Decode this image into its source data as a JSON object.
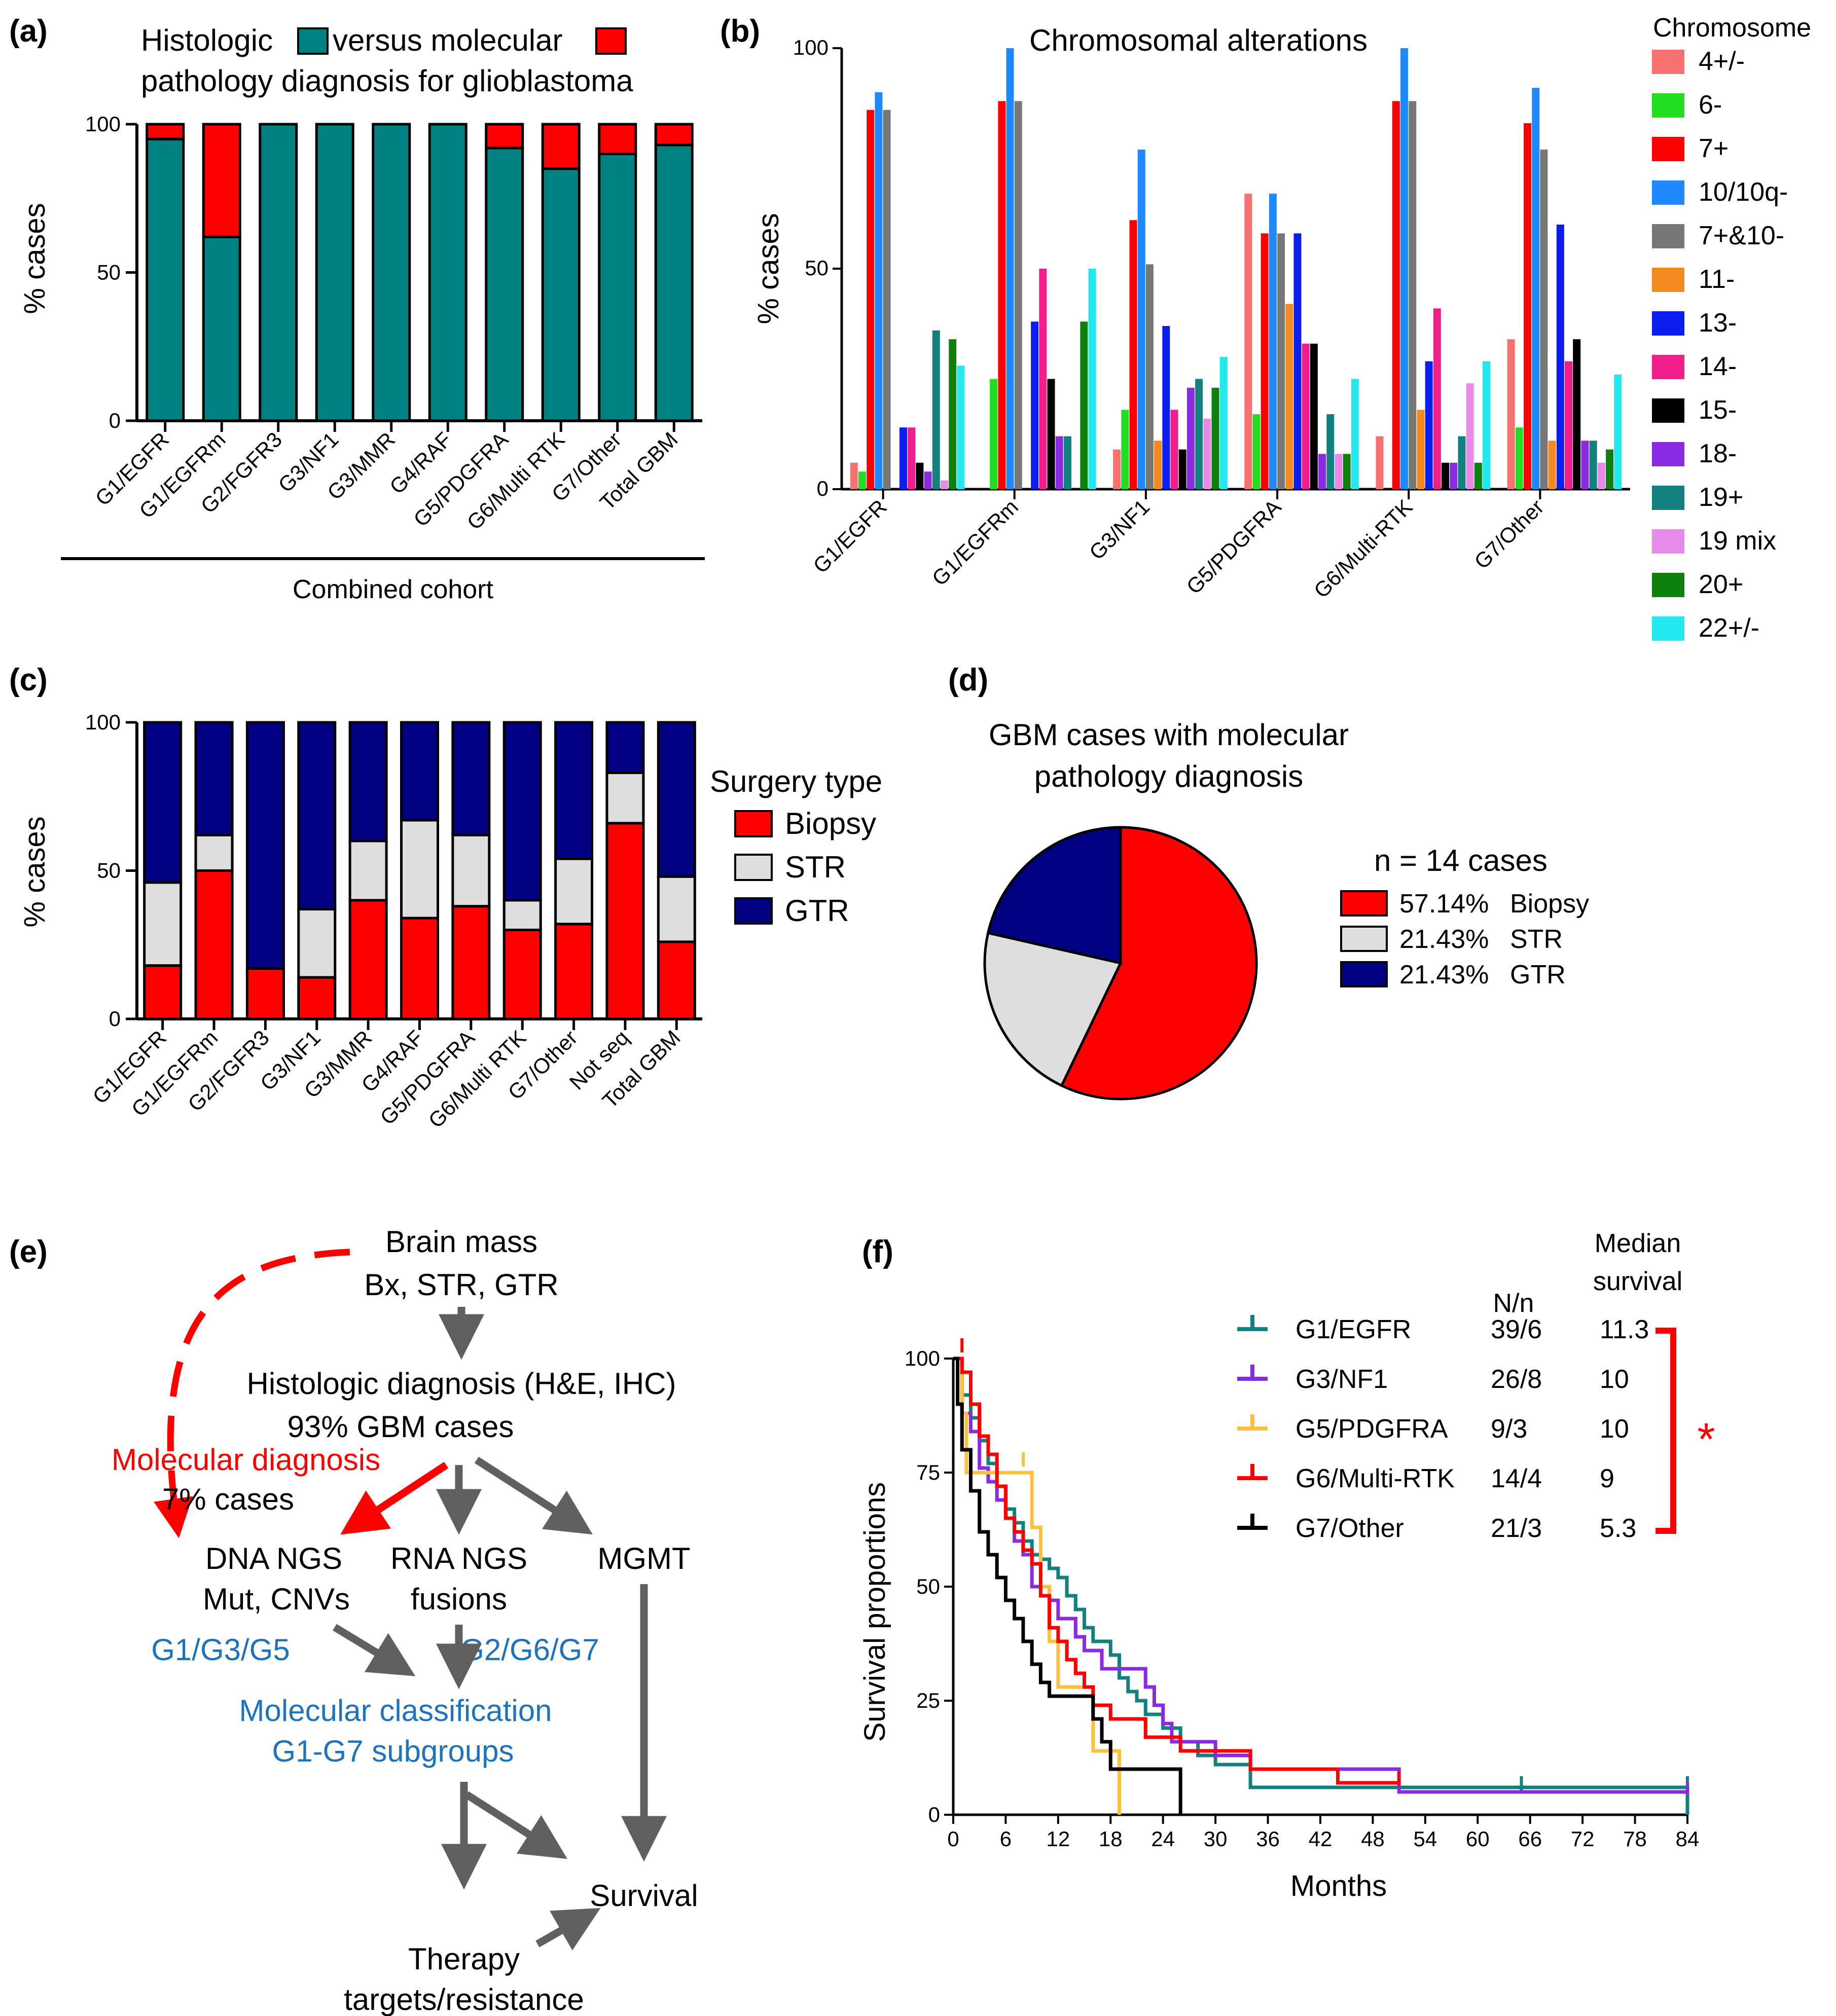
{
  "colors": {
    "teal": "#008080",
    "red": "#ff0000",
    "navy": "#000080",
    "lightgray": "#dedede",
    "gray_arrow": "#606060",
    "blue_text": "#1e73be"
  },
  "chart_data": [
    {
      "id": "a",
      "type": "bar",
      "stacked": true,
      "panel_label": "(a)",
      "title": "versus molecular pathology diagnosis for glioblastoma",
      "legend": [
        "Histologic",
        "versus molecular"
      ],
      "xlabel": "Combined cohort",
      "ylabel": "% cases",
      "ylim": [
        0,
        100
      ],
      "yticks": [
        "0",
        "50",
        "100"
      ],
      "categories": [
        "G1/EGFR",
        "G1/EGFRm",
        "G2/FGFR3",
        "G3/NF1",
        "G3/MMR",
        "G4/RAF",
        "G5/PDGFRA",
        "G6/Multi RTK",
        "G7/Other",
        "Total GBM"
      ],
      "series": [
        {
          "name": "Histologic",
          "color": "#008080",
          "values": [
            95,
            62,
            100,
            100,
            100,
            100,
            92,
            85,
            90,
            93
          ]
        },
        {
          "name": "Molecular",
          "color": "#ff0000",
          "values": [
            5,
            38,
            0,
            0,
            0,
            0,
            8,
            15,
            10,
            7
          ]
        }
      ]
    },
    {
      "id": "b",
      "type": "bar",
      "grouped": true,
      "panel_label": "(b)",
      "title": "Chromosomal alterations",
      "legend_title": "Chromosome",
      "ylabel": "% cases",
      "ylim": [
        0,
        100
      ],
      "yticks": [
        "0",
        "50",
        "100"
      ],
      "categories": [
        "G1/EGFR",
        "G1/EGFRm",
        "G3/NF1",
        "G5/PDGFRA",
        "G6/Multi-RTK",
        "G7/Other"
      ],
      "series": [
        {
          "name": "4+/-",
          "color": "#f87171",
          "values": [
            6,
            0,
            9,
            67,
            12,
            34
          ]
        },
        {
          "name": "6-",
          "color": "#22dd22",
          "values": [
            4,
            25,
            18,
            17,
            0,
            14
          ]
        },
        {
          "name": "7+",
          "color": "#ff0000",
          "values": [
            86,
            88,
            61,
            58,
            88,
            83
          ]
        },
        {
          "name": "10/10q-",
          "color": "#1e88ff",
          "values": [
            90,
            100,
            77,
            67,
            100,
            91
          ]
        },
        {
          "name": "7+&10-",
          "color": "#777777",
          "values": [
            86,
            88,
            51,
            58,
            88,
            77
          ]
        },
        {
          "name": "11-",
          "color": "#f28a1e",
          "values": [
            0,
            0,
            11,
            42,
            18,
            11
          ]
        },
        {
          "name": "13-",
          "color": "#0b1eef",
          "values": [
            14,
            38,
            37,
            58,
            29,
            60
          ]
        },
        {
          "name": "14-",
          "color": "#ef1e8a",
          "values": [
            14,
            50,
            18,
            33,
            41,
            29
          ]
        },
        {
          "name": "15-",
          "color": "#000000",
          "values": [
            6,
            25,
            9,
            33,
            6,
            34
          ]
        },
        {
          "name": "18-",
          "color": "#8a2be2",
          "values": [
            4,
            12,
            23,
            8,
            6,
            11
          ]
        },
        {
          "name": "19+",
          "color": "#138080",
          "values": [
            36,
            12,
            25,
            17,
            12,
            11
          ]
        },
        {
          "name": "19 mix",
          "color": "#e78ae8",
          "values": [
            2,
            0,
            16,
            8,
            24,
            6
          ]
        },
        {
          "name": "20+",
          "color": "#0d800d",
          "values": [
            34,
            38,
            23,
            8,
            6,
            9
          ]
        },
        {
          "name": "22+/-",
          "color": "#22e8ef",
          "values": [
            28,
            50,
            30,
            25,
            29,
            26
          ]
        }
      ]
    },
    {
      "id": "c",
      "type": "bar",
      "stacked": true,
      "panel_label": "(c)",
      "ylabel": "% cases",
      "ylim": [
        0,
        100
      ],
      "yticks": [
        "0",
        "50",
        "100"
      ],
      "legend_title": "Surgery type",
      "categories": [
        "G1/EGFR",
        "G1/EGFRm",
        "G2/FGFR3",
        "G3/NF1",
        "G3/MMR",
        "G4/RAF",
        "G5/PDGFRA",
        "G6/Multi RTK",
        "G7/Other",
        "Not seq",
        "Total GBM"
      ],
      "series": [
        {
          "name": "Biopsy",
          "color": "#ff0000",
          "values": [
            18,
            50,
            17,
            14,
            40,
            34,
            38,
            30,
            32,
            66,
            26
          ]
        },
        {
          "name": "STR",
          "color": "#dedede",
          "values": [
            28,
            12,
            0,
            23,
            20,
            33,
            24,
            10,
            22,
            17,
            22
          ]
        },
        {
          "name": "GTR",
          "color": "#000080",
          "values": [
            54,
            38,
            83,
            63,
            40,
            33,
            38,
            60,
            46,
            17,
            52
          ]
        }
      ]
    },
    {
      "id": "d",
      "type": "pie",
      "panel_label": "(d)",
      "title": "GBM cases with molecular pathology diagnosis",
      "subtitle": "n = 14 cases",
      "slices": [
        {
          "label": "Biopsy",
          "pct_text": "57.14%",
          "value": 57.14,
          "color": "#ff0000"
        },
        {
          "label": "STR",
          "pct_text": "21.43%",
          "value": 21.43,
          "color": "#dedede"
        },
        {
          "label": "GTR",
          "pct_text": "21.43%",
          "value": 21.43,
          "color": "#000080"
        }
      ]
    },
    {
      "id": "f",
      "type": "line",
      "step": true,
      "panel_label": "(f)",
      "xlabel": "Months",
      "ylabel": "Survival proportions",
      "xlim": [
        0,
        84
      ],
      "ylim": [
        0,
        100
      ],
      "xticks": [
        0,
        6,
        12,
        18,
        24,
        30,
        36,
        42,
        48,
        54,
        60,
        66,
        72,
        78,
        84
      ],
      "yticks": [
        0,
        25,
        50,
        75,
        100
      ],
      "col_n_header": "N/n",
      "col_median_header": "Median survival",
      "significance": "*",
      "series": [
        {
          "name": "G1/EGFR",
          "n": "39/6",
          "median": "11.3",
          "color": "#138080",
          "points": [
            [
              0,
              100
            ],
            [
              1,
              92
            ],
            [
              2,
              87
            ],
            [
              3,
              82
            ],
            [
              4,
              77
            ],
            [
              5,
              72
            ],
            [
              6,
              67
            ],
            [
              7,
              64
            ],
            [
              8,
              60
            ],
            [
              9,
              57
            ],
            [
              10,
              56
            ],
            [
              11,
              54
            ],
            [
              12,
              52
            ],
            [
              13,
              48
            ],
            [
              14,
              45
            ],
            [
              15,
              41
            ],
            [
              16,
              38
            ],
            [
              18,
              35
            ],
            [
              19,
              30
            ],
            [
              20,
              27
            ],
            [
              21,
              25
            ],
            [
              22,
              22
            ],
            [
              24,
              19
            ],
            [
              26,
              16
            ],
            [
              28,
              13
            ],
            [
              30,
              11
            ],
            [
              34,
              6
            ],
            [
              50,
              6
            ],
            [
              84,
              6
            ],
            [
              84,
              0
            ]
          ],
          "censors": [
            [
              14,
              40
            ],
            [
              65,
              6
            ],
            [
              84,
              6
            ]
          ]
        },
        {
          "name": "G3/NF1",
          "n": "26/8",
          "median": "10",
          "color": "#8a2be2",
          "points": [
            [
              0,
              100
            ],
            [
              1,
              88
            ],
            [
              2,
              84
            ],
            [
              3,
              76
            ],
            [
              4,
              73
            ],
            [
              5,
              69
            ],
            [
              6,
              65
            ],
            [
              7,
              60
            ],
            [
              8,
              57
            ],
            [
              9,
              50
            ],
            [
              11,
              47
            ],
            [
              12,
              43
            ],
            [
              14,
              39
            ],
            [
              15,
              36
            ],
            [
              17,
              32
            ],
            [
              22,
              28
            ],
            [
              23,
              24
            ],
            [
              24,
              20
            ],
            [
              25,
              16
            ],
            [
              30,
              13
            ],
            [
              34,
              10
            ],
            [
              50,
              10
            ],
            [
              51,
              5
            ],
            [
              84,
              5
            ]
          ],
          "censors": [
            [
              84,
              5
            ]
          ]
        },
        {
          "name": "G5/PDGFRA",
          "n": "9/3",
          "median": "10",
          "color": "#ffc040",
          "points": [
            [
              0,
              100
            ],
            [
              1,
              88
            ],
            [
              1.5,
              75
            ],
            [
              8,
              75
            ],
            [
              9,
              63
            ],
            [
              10,
              50
            ],
            [
              11,
              38
            ],
            [
              12,
              28
            ],
            [
              15,
              28
            ],
            [
              16,
              14
            ],
            [
              18,
              14
            ],
            [
              19,
              0
            ]
          ],
          "censors": [
            [
              8,
              77
            ]
          ]
        },
        {
          "name": "G6/Multi-RTK",
          "n": "14/4",
          "median": "9",
          "color": "#ff0000",
          "points": [
            [
              0,
              100
            ],
            [
              1,
              97
            ],
            [
              2,
              90
            ],
            [
              3,
              83
            ],
            [
              4,
              79
            ],
            [
              5,
              72
            ],
            [
              6,
              65
            ],
            [
              7,
              62
            ],
            [
              8,
              58
            ],
            [
              9,
              55
            ],
            [
              10,
              48
            ],
            [
              11,
              41
            ],
            [
              12,
              38
            ],
            [
              13,
              34
            ],
            [
              14,
              31
            ],
            [
              15,
              28
            ],
            [
              16,
              24
            ],
            [
              18,
              21
            ],
            [
              22,
              17
            ],
            [
              26,
              14
            ],
            [
              34,
              10
            ],
            [
              44,
              7
            ],
            [
              51,
              7
            ]
          ],
          "censors": [
            [
              1,
              102
            ],
            [
              51,
              7
            ]
          ]
        },
        {
          "name": "G7/Other",
          "n": "21/3",
          "median": "5.3",
          "color": "#000000",
          "points": [
            [
              0,
              100
            ],
            [
              0.5,
              90
            ],
            [
              1,
              80
            ],
            [
              2,
              71
            ],
            [
              3,
              62
            ],
            [
              4,
              57
            ],
            [
              5,
              52
            ],
            [
              6,
              47
            ],
            [
              7,
              43
            ],
            [
              8,
              38
            ],
            [
              9,
              33
            ],
            [
              10,
              29
            ],
            [
              11,
              26
            ],
            [
              16,
              21
            ],
            [
              17,
              16
            ],
            [
              18,
              10
            ],
            [
              24,
              10
            ],
            [
              26,
              5
            ],
            [
              26,
              0
            ]
          ],
          "censors": [
            [
              18,
              12
            ]
          ]
        }
      ]
    }
  ],
  "panel_a": {
    "label": "(a)",
    "title_word1": "Histologic",
    "title_word2": "versus molecular",
    "title_line2": "pathology diagnosis for glioblastoma",
    "cohort_label": "Combined cohort",
    "ylabel": "% cases"
  },
  "panel_b": {
    "label": "(b)",
    "title": "Chromosomal alterations",
    "legend_title": "Chromosome",
    "ylabel": "% cases"
  },
  "panel_c": {
    "label": "(c)",
    "ylabel": "% cases",
    "legend_title": "Surgery type",
    "legend": [
      "Biopsy",
      "STR",
      "GTR"
    ]
  },
  "panel_d": {
    "label": "(d)",
    "title_line1": "GBM cases with molecular",
    "title_line2": "pathology diagnosis",
    "n_text": "n = 14 cases"
  },
  "panel_e": {
    "label": "(e)",
    "brain_mass": "Brain mass",
    "bx_str_gtr": "Bx, STR, GTR",
    "histologic": "Histologic diagnosis (H&E, IHC)",
    "gbm_cases": "93% GBM cases",
    "molecular_diagnosis": "Molecular diagnosis",
    "seven_pct": "7% cases",
    "dna_ngs": "DNA NGS",
    "mut_cnvs": "Mut, CNVs",
    "rna_ngs": "RNA NGS",
    "fusions": "fusions",
    "mgmt": "MGMT",
    "g135": "G1/G3/G5",
    "g267": "G2/G6/G7",
    "mol_class": "Molecular classification",
    "subgroups": "G1-G7 subgroups",
    "survival": "Survival",
    "therapy": "Therapy",
    "targets": "targets/resistance"
  },
  "panel_f": {
    "label": "(f)",
    "n_header": "N/n",
    "median_header_1": "Median",
    "median_header_2": "survival",
    "xlabel": "Months",
    "ylabel": "Survival proportions"
  }
}
